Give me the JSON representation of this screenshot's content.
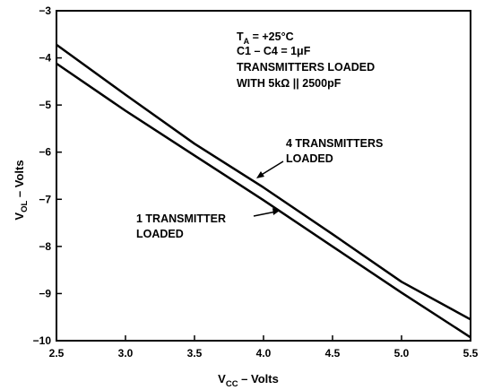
{
  "chart_data": {
    "type": "line",
    "xlim": [
      2.5,
      5.5
    ],
    "ylim": [
      -10,
      -3
    ],
    "xticks": [
      "2.5",
      "3.0",
      "3.5",
      "4.0",
      "4.5",
      "5.0",
      "5.5"
    ],
    "yticks": [
      "−3",
      "−4",
      "−5",
      "−6",
      "−7",
      "−8",
      "−9",
      "−10"
    ],
    "xlabel": {
      "main": "V",
      "sub": "CC",
      "rest": " – Volts"
    },
    "ylabel": {
      "main": "V",
      "sub": "OL",
      "rest": " – Volts"
    },
    "grid": false,
    "series": [
      {
        "name": "4 TRANSMITTERS LOADED",
        "x": [
          2.5,
          3.0,
          3.5,
          4.0,
          4.5,
          5.0,
          5.5
        ],
        "y": [
          -3.72,
          -4.78,
          -5.82,
          -6.75,
          -7.74,
          -8.75,
          -9.55
        ]
      },
      {
        "name": "1 TRANSMITTER LOADED",
        "x": [
          2.5,
          3.0,
          3.5,
          4.0,
          4.5,
          5.0,
          5.5
        ],
        "y": [
          -4.12,
          -5.12,
          -6.07,
          -7.02,
          -8.0,
          -8.98,
          -9.93
        ]
      }
    ],
    "conditions": {
      "line1_main": "T",
      "line1_sub": "A",
      "line1_rest": " = +25°C",
      "line2": "C1 – C4 = 1μF",
      "line3": "TRANSMITTERS LOADED",
      "line4": "WITH 5kΩ || 2500pF"
    },
    "annotations": {
      "series1_line1": "4 TRANSMITTERS",
      "series1_line2": "LOADED",
      "series2_line1": "1 TRANSMITTER",
      "series2_line2": "LOADED"
    }
  }
}
